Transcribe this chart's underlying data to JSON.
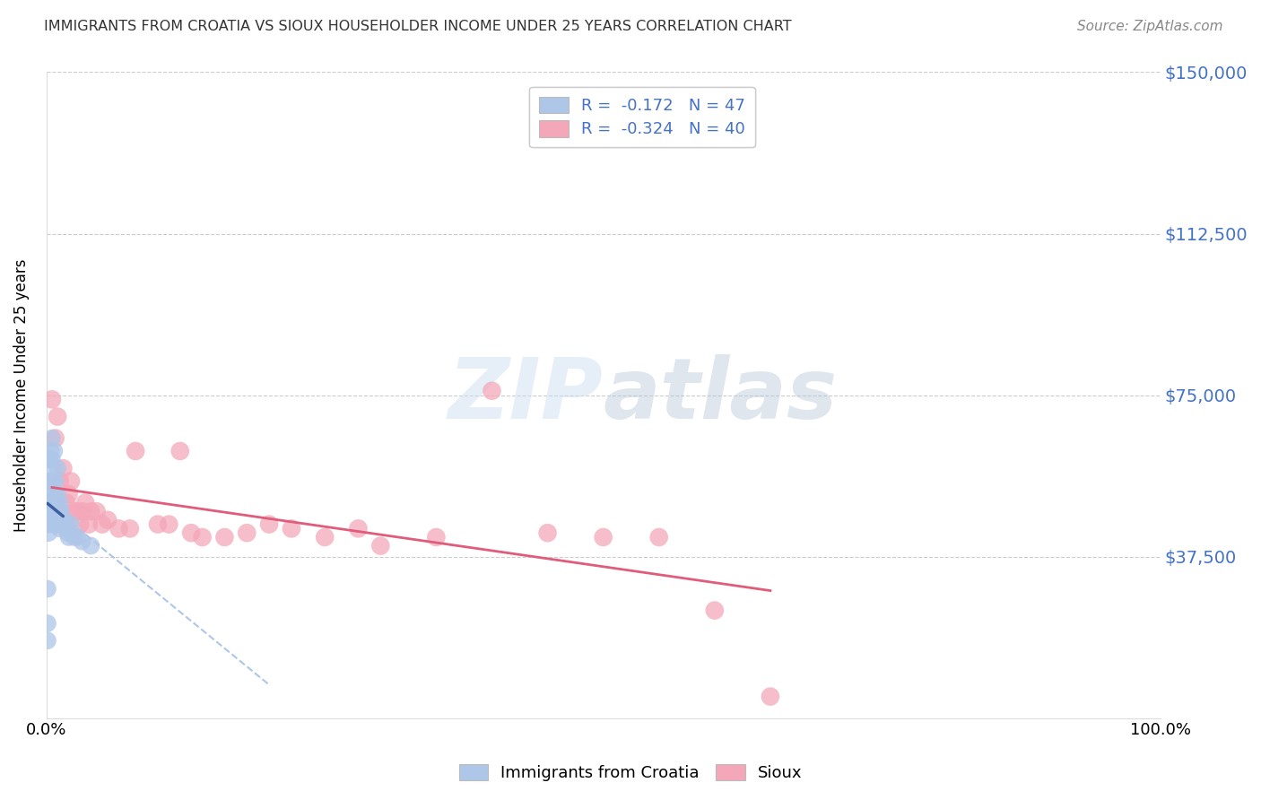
{
  "title": "IMMIGRANTS FROM CROATIA VS SIOUX HOUSEHOLDER INCOME UNDER 25 YEARS CORRELATION CHART",
  "source": "Source: ZipAtlas.com",
  "ylabel": "Householder Income Under 25 years",
  "xlim": [
    0.0,
    1.0
  ],
  "ylim": [
    0,
    150000
  ],
  "ytick_values": [
    37500,
    75000,
    112500,
    150000
  ],
  "ytick_labels": [
    "$37,500",
    "$75,000",
    "$112,500",
    "$150,000"
  ],
  "watermark_zip": "ZIP",
  "watermark_atlas": "atlas",
  "legend_r1": "R =  -0.172   N = 47",
  "legend_r2": "R =  -0.324   N = 40",
  "legend_label1": "Immigrants from Croatia",
  "legend_label2": "Sioux",
  "blue_color": "#aec6e8",
  "pink_color": "#f4a7b9",
  "blue_line_color": "#3a5fa0",
  "pink_line_color": "#e05c7a",
  "title_color": "#333333",
  "right_tick_color": "#4472c4",
  "source_color": "#888888",
  "croatia_x": [
    0.001,
    0.001,
    0.001,
    0.002,
    0.002,
    0.002,
    0.002,
    0.003,
    0.003,
    0.003,
    0.004,
    0.004,
    0.004,
    0.005,
    0.005,
    0.005,
    0.005,
    0.006,
    0.006,
    0.006,
    0.007,
    0.007,
    0.007,
    0.008,
    0.008,
    0.008,
    0.009,
    0.009,
    0.01,
    0.01,
    0.011,
    0.011,
    0.012,
    0.012,
    0.013,
    0.014,
    0.015,
    0.016,
    0.017,
    0.018,
    0.019,
    0.02,
    0.022,
    0.025,
    0.028,
    0.032,
    0.04
  ],
  "croatia_y": [
    22000,
    30000,
    18000,
    45000,
    50000,
    43000,
    55000,
    55000,
    60000,
    48000,
    62000,
    55000,
    45000,
    65000,
    52000,
    60000,
    48000,
    58000,
    50000,
    55000,
    62000,
    50000,
    48000,
    55000,
    52000,
    45000,
    50000,
    48000,
    52000,
    58000,
    48000,
    45000,
    50000,
    44000,
    48000,
    45000,
    45000,
    46000,
    45000,
    44000,
    43000,
    42000,
    45000,
    42000,
    42000,
    41000,
    40000
  ],
  "sioux_x": [
    0.005,
    0.008,
    0.01,
    0.012,
    0.015,
    0.018,
    0.02,
    0.022,
    0.025,
    0.028,
    0.03,
    0.032,
    0.035,
    0.038,
    0.04,
    0.045,
    0.05,
    0.055,
    0.065,
    0.075,
    0.08,
    0.1,
    0.11,
    0.12,
    0.13,
    0.14,
    0.16,
    0.18,
    0.2,
    0.22,
    0.25,
    0.28,
    0.3,
    0.35,
    0.4,
    0.45,
    0.5,
    0.55,
    0.6,
    0.65
  ],
  "sioux_y": [
    74000,
    65000,
    70000,
    55000,
    58000,
    50000,
    52000,
    55000,
    48000,
    48000,
    45000,
    48000,
    50000,
    45000,
    48000,
    48000,
    45000,
    46000,
    44000,
    44000,
    62000,
    45000,
    45000,
    62000,
    43000,
    42000,
    42000,
    43000,
    45000,
    44000,
    42000,
    44000,
    40000,
    42000,
    76000,
    43000,
    42000,
    42000,
    25000,
    5000
  ]
}
